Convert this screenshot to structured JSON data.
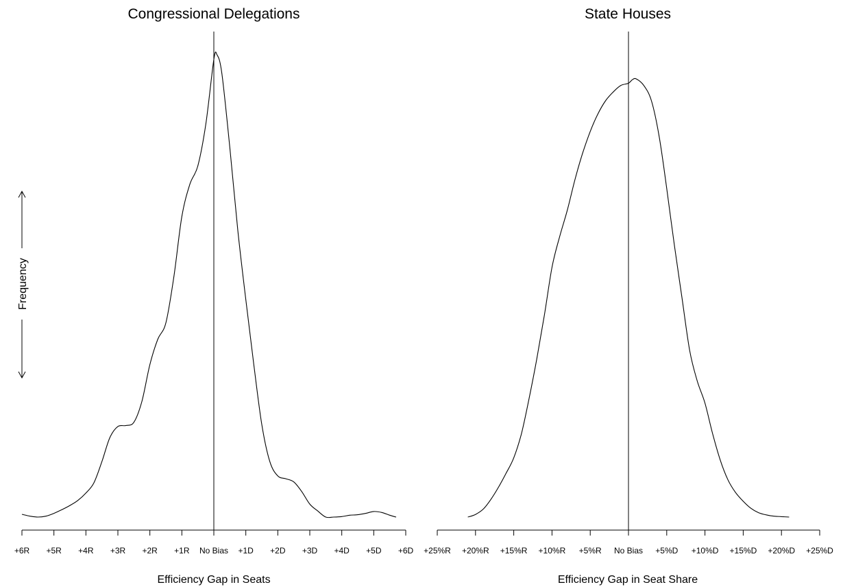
{
  "y_axis": {
    "label": "Frequency"
  },
  "chart_data": [
    {
      "type": "line",
      "title": "Congressional Delegations",
      "xlabel": "Efficiency Gap in Seats",
      "ylabel": "Frequency",
      "xlim": [
        -6,
        6
      ],
      "ylim": [
        0,
        1
      ],
      "reference_line_x": 0,
      "grid": false,
      "tick_values": [
        -6,
        -5,
        -4,
        -3,
        -2,
        -1,
        0,
        1,
        2,
        3,
        4,
        5,
        6
      ],
      "tick_labels": [
        "+6R",
        "+5R",
        "+4R",
        "+3R",
        "+2R",
        "+1R",
        "No Bias",
        "+1D",
        "+2D",
        "+3D",
        "+4D",
        "+5D",
        "+6D"
      ],
      "series": [
        {
          "x": [
            -6.0,
            -5.75,
            -5.5,
            -5.25,
            -5.0,
            -4.75,
            -4.5,
            -4.25,
            -4.0,
            -3.75,
            -3.5,
            -3.25,
            -3.0,
            -2.75,
            -2.5,
            -2.25,
            -2.0,
            -1.75,
            -1.5,
            -1.25,
            -1.0,
            -0.75,
            -0.5,
            -0.25,
            0.0,
            0.1,
            0.25,
            0.5,
            0.75,
            1.0,
            1.25,
            1.5,
            1.75,
            2.0,
            2.25,
            2.5,
            2.75,
            3.0,
            3.25,
            3.5,
            3.75,
            4.0,
            4.25,
            4.5,
            4.75,
            5.0,
            5.25,
            5.5,
            5.7
          ],
          "y": [
            0.006,
            0.002,
            0.0,
            0.002,
            0.008,
            0.016,
            0.025,
            0.036,
            0.052,
            0.074,
            0.12,
            0.172,
            0.196,
            0.198,
            0.205,
            0.25,
            0.33,
            0.385,
            0.42,
            0.52,
            0.65,
            0.72,
            0.76,
            0.85,
            0.99,
            1.0,
            0.96,
            0.8,
            0.62,
            0.47,
            0.33,
            0.2,
            0.12,
            0.089,
            0.083,
            0.076,
            0.055,
            0.028,
            0.013,
            0.0,
            0.0,
            0.001,
            0.004,
            0.005,
            0.008,
            0.012,
            0.01,
            0.004,
            0.0
          ]
        }
      ]
    },
    {
      "type": "line",
      "title": "State Houses",
      "xlabel": "Efficiency Gap in Seat Share",
      "ylabel": "Frequency",
      "xlim": [
        -25,
        25
      ],
      "ylim": [
        0,
        1
      ],
      "reference_line_x": 0,
      "grid": false,
      "tick_values": [
        -25,
        -20,
        -15,
        -10,
        -5,
        0,
        5,
        10,
        15,
        20,
        25
      ],
      "tick_labels": [
        "+25%R",
        "+20%R",
        "+15%R",
        "+10%R",
        "+5%R",
        "No Bias",
        "+5%D",
        "+10%D",
        "+15%D",
        "+20%D",
        "+25%D"
      ],
      "series": [
        {
          "x": [
            -21.0,
            -20.0,
            -19.0,
            -18.0,
            -17.0,
            -16.0,
            -15.0,
            -14.0,
            -13.0,
            -12.0,
            -11.0,
            -10.0,
            -9.0,
            -8.0,
            -7.0,
            -6.0,
            -5.0,
            -4.0,
            -3.0,
            -2.0,
            -1.0,
            0.0,
            0.5,
            1.0,
            2.0,
            3.0,
            4.0,
            5.0,
            6.0,
            7.0,
            8.0,
            9.0,
            10.0,
            11.0,
            12.0,
            13.0,
            14.0,
            15.0,
            16.0,
            17.0,
            18.0,
            19.0,
            20.0,
            21.0
          ],
          "y": [
            0.0,
            0.006,
            0.018,
            0.04,
            0.068,
            0.1,
            0.135,
            0.19,
            0.27,
            0.36,
            0.46,
            0.57,
            0.64,
            0.7,
            0.77,
            0.83,
            0.88,
            0.92,
            0.95,
            0.97,
            0.985,
            0.99,
            0.998,
            1.0,
            0.985,
            0.95,
            0.87,
            0.75,
            0.62,
            0.5,
            0.38,
            0.31,
            0.26,
            0.19,
            0.13,
            0.085,
            0.056,
            0.036,
            0.02,
            0.01,
            0.005,
            0.002,
            0.001,
            0.0
          ]
        }
      ]
    }
  ]
}
